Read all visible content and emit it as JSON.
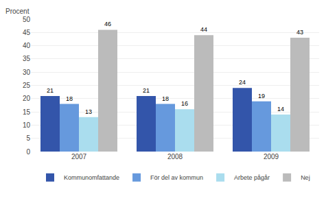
{
  "chart_data": {
    "type": "bar",
    "ylabel": "Procent",
    "categories": [
      "2007",
      "2008",
      "2009"
    ],
    "series": [
      {
        "name": "Kommunomfattande",
        "color": "#3355AA",
        "values": [
          21,
          21,
          24
        ]
      },
      {
        "name": "För del av kommun",
        "color": "#6699DD",
        "values": [
          18,
          18,
          19
        ]
      },
      {
        "name": "Arbete pågår",
        "color": "#AADDEE",
        "values": [
          13,
          16,
          14
        ]
      },
      {
        "name": "Nej",
        "color": "#BBBBBB",
        "values": [
          46,
          44,
          43
        ]
      }
    ],
    "ylim": [
      0,
      50
    ],
    "yticks": [
      0,
      5,
      10,
      15,
      20,
      25,
      30,
      35,
      40,
      45,
      50
    ],
    "grid": true,
    "data_labels": true,
    "legend": "bottom"
  }
}
